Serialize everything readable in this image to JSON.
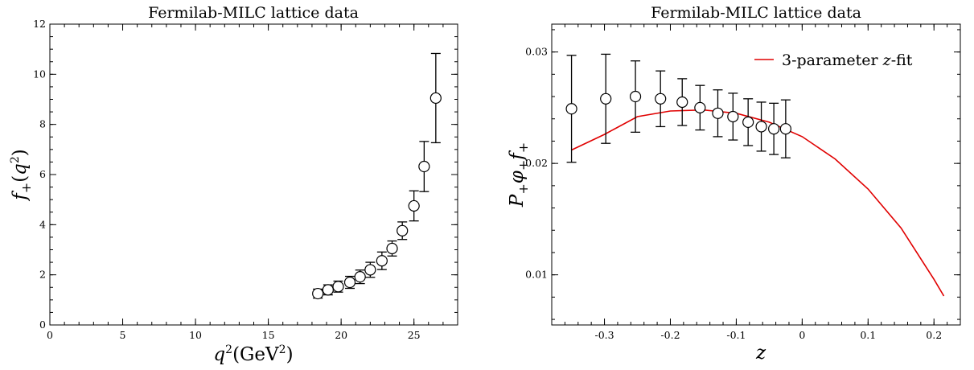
{
  "chart_data": [
    {
      "type": "scatter",
      "title": "Fermilab-MILC lattice data",
      "xlabel": "q²(GeV²)",
      "ylabel": "f₊(q²)",
      "xlim": [
        0,
        28
      ],
      "ylim": [
        0,
        12
      ],
      "xticks": [
        "0",
        "5",
        "10",
        "15",
        "20",
        "25"
      ],
      "yticks": [
        "0",
        "2",
        "4",
        "6",
        "8",
        "10",
        "12"
      ],
      "grid": false,
      "series": [
        {
          "marker": "open-circle",
          "points": [
            {
              "x": 18.4,
              "y": 1.25,
              "err": 0.18
            },
            {
              "x": 19.1,
              "y": 1.4,
              "err": 0.2
            },
            {
              "x": 19.8,
              "y": 1.53,
              "err": 0.22
            },
            {
              "x": 20.6,
              "y": 1.7,
              "err": 0.24
            },
            {
              "x": 21.3,
              "y": 1.92,
              "err": 0.27
            },
            {
              "x": 22.0,
              "y": 2.2,
              "err": 0.3
            },
            {
              "x": 22.8,
              "y": 2.56,
              "err": 0.35
            },
            {
              "x": 23.5,
              "y": 3.05,
              "err": 0.3
            },
            {
              "x": 24.2,
              "y": 3.76,
              "err": 0.35
            },
            {
              "x": 25.0,
              "y": 4.75,
              "err": 0.6
            },
            {
              "x": 25.7,
              "y": 6.32,
              "err": 1.0
            },
            {
              "x": 26.5,
              "y": 9.05,
              "err": 1.78
            }
          ]
        }
      ]
    },
    {
      "type": "scatter",
      "title": "Fermilab-MILC lattice data",
      "xlabel": "z",
      "ylabel": "P₊φ₊f₊",
      "xlim": [
        -0.38,
        0.24
      ],
      "ylim": [
        0.0055,
        0.0325
      ],
      "xticks": [
        "-0.3",
        "-0.2",
        "-0.1",
        "0",
        "0.1",
        "0.2"
      ],
      "yticks": [
        "0.01",
        "0.02",
        "0.03"
      ],
      "grid": false,
      "legend": {
        "position": "top-right",
        "entries": [
          "3-parameter z-fit"
        ]
      },
      "series": [
        {
          "marker": "open-circle",
          "points": [
            {
              "x": -0.35,
              "y": 0.0249,
              "err": 0.0048
            },
            {
              "x": -0.298,
              "y": 0.0258,
              "err": 0.004
            },
            {
              "x": -0.253,
              "y": 0.026,
              "err": 0.0032
            },
            {
              "x": -0.215,
              "y": 0.0258,
              "err": 0.0025
            },
            {
              "x": -0.182,
              "y": 0.0255,
              "err": 0.0021
            },
            {
              "x": -0.155,
              "y": 0.025,
              "err": 0.002
            },
            {
              "x": -0.128,
              "y": 0.0245,
              "err": 0.0021
            },
            {
              "x": -0.105,
              "y": 0.0242,
              "err": 0.0021
            },
            {
              "x": -0.082,
              "y": 0.0237,
              "err": 0.0021
            },
            {
              "x": -0.062,
              "y": 0.0233,
              "err": 0.0022
            },
            {
              "x": -0.043,
              "y": 0.0231,
              "err": 0.0023
            },
            {
              "x": -0.025,
              "y": 0.0231,
              "err": 0.0026
            }
          ]
        },
        {
          "name": "3-parameter z-fit",
          "type": "line",
          "color": "#e00000",
          "points": [
            {
              "x": -0.35,
              "y": 0.0212
            },
            {
              "x": -0.3,
              "y": 0.0226
            },
            {
              "x": -0.25,
              "y": 0.0242
            },
            {
              "x": -0.2,
              "y": 0.0247
            },
            {
              "x": -0.15,
              "y": 0.0248
            },
            {
              "x": -0.1,
              "y": 0.0245
            },
            {
              "x": -0.05,
              "y": 0.0237
            },
            {
              "x": 0.0,
              "y": 0.0224
            },
            {
              "x": 0.05,
              "y": 0.0204
            },
            {
              "x": 0.1,
              "y": 0.0177
            },
            {
              "x": 0.15,
              "y": 0.0142
            },
            {
              "x": 0.2,
              "y": 0.0096
            },
            {
              "x": 0.215,
              "y": 0.0081
            }
          ]
        }
      ]
    }
  ]
}
